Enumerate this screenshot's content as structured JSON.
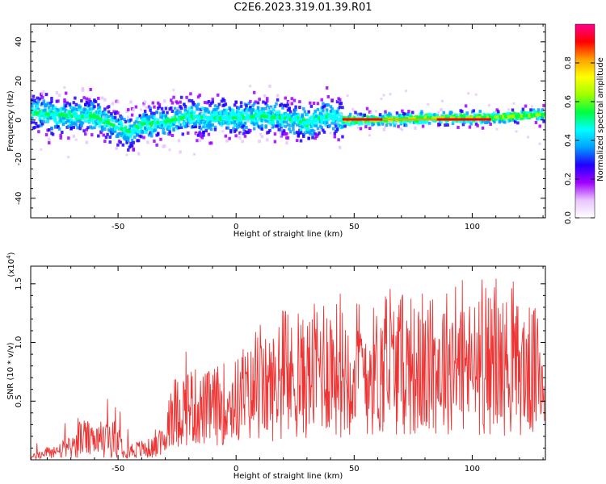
{
  "title": "C2E6.2023.319.01.39.R01",
  "chart_data": [
    {
      "type": "heatmap",
      "xlabel": "Height of straight line (km)",
      "ylabel": "Frequency (Hz)",
      "xlim": [
        -87,
        131
      ],
      "ylim": [
        -50,
        49
      ],
      "xticks": [
        -50,
        0,
        50,
        100
      ],
      "yticks": [
        -40,
        -20,
        0,
        20,
        40
      ],
      "colorbar": {
        "label": "Normalized spectral amplitude",
        "lim": [
          0,
          1
        ],
        "ticks": [
          "0.0",
          "0.2",
          "0.4",
          "0.6",
          "0.8"
        ],
        "colors": [
          "#ffffff",
          "#e9c4ff",
          "#a000ff",
          "#2000ff",
          "#00a0ff",
          "#00ffff",
          "#00ff40",
          "#a0ff00",
          "#ffff00",
          "#ffa000",
          "#ff0000",
          "#ff0090"
        ]
      },
      "ridge": {
        "x": [
          -87,
          -80,
          -70,
          -60,
          -50,
          -45,
          -40,
          -30,
          -20,
          -10,
          0,
          10,
          20,
          25,
          30,
          35,
          40,
          45,
          60,
          80,
          100,
          120,
          131
        ],
        "freq": [
          4,
          3,
          2,
          2,
          -4,
          -6,
          -2,
          -1,
          2,
          1,
          1,
          2,
          1,
          0,
          -2,
          1,
          2,
          0,
          0,
          1,
          1,
          2,
          3
        ]
      }
    },
    {
      "type": "line",
      "xlabel": "Height of straight line (km)",
      "ylabel": "SNR (10 * v/v)",
      "y_multiplier": "(x10",
      "y_multiplier_exp": "4",
      "y_multiplier_close": ")",
      "xlim": [
        -87,
        131
      ],
      "ylim": [
        0,
        1.65
      ],
      "xticks": [
        -50,
        0,
        50,
        100
      ],
      "yticks": [
        0.5,
        1.0,
        1.5
      ],
      "ytick_labels": [
        "0.5",
        "1.0",
        "1.5"
      ],
      "color": "#ee3333",
      "series": [
        {
          "x": [
            -87,
            -80,
            -70,
            -65,
            -60,
            -55,
            -50,
            -45,
            -40,
            -35,
            -30,
            -28,
            -25,
            -20,
            -15,
            -10,
            -5,
            0,
            5,
            10,
            15,
            20,
            25,
            30,
            35,
            38,
            40,
            45,
            50,
            60,
            70,
            80,
            90,
            100,
            110,
            118,
            125,
            131
          ],
          "values": [
            0.02,
            0.06,
            0.1,
            0.2,
            0.14,
            0.2,
            0.15,
            0.08,
            0.09,
            0.1,
            0.15,
            0.45,
            0.4,
            0.48,
            0.42,
            0.45,
            0.48,
            0.5,
            0.55,
            0.58,
            0.62,
            0.65,
            0.68,
            0.7,
            0.8,
            0.85,
            0.8,
            0.75,
            0.8,
            0.75,
            0.82,
            0.72,
            0.85,
            0.78,
            0.82,
            0.78,
            0.75,
            0.72
          ]
        }
      ]
    }
  ]
}
